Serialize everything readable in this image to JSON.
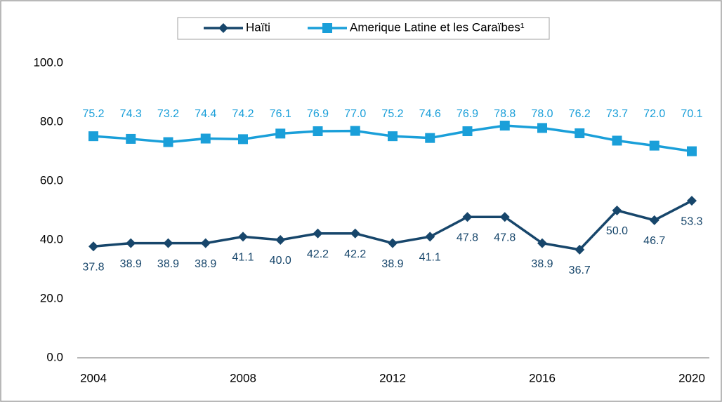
{
  "chart_data": {
    "type": "line",
    "x": [
      2004,
      2005,
      2006,
      2007,
      2008,
      2009,
      2010,
      2011,
      2012,
      2013,
      2014,
      2015,
      2016,
      2017,
      2018,
      2019,
      2020
    ],
    "series": [
      {
        "name": "Haïti",
        "color": "#17466b",
        "marker": "diamond",
        "values": [
          37.8,
          38.9,
          38.9,
          38.9,
          41.1,
          40.0,
          42.2,
          42.2,
          38.9,
          41.1,
          47.8,
          47.8,
          38.9,
          36.7,
          50.0,
          46.7,
          53.3
        ],
        "value_labels": [
          "37.8",
          "38.9",
          "38.9",
          "38.9",
          "41.1",
          "40.0",
          "42.2",
          "42.2",
          "38.9",
          "41.1",
          "47.8",
          "47.8",
          "38.9",
          "36.7",
          "50.0",
          "46.7",
          "53.3"
        ]
      },
      {
        "name": "Amerique Latine et les Caraïbes¹",
        "color": "#1a9fd9",
        "marker": "square",
        "values": [
          75.2,
          74.3,
          73.2,
          74.4,
          74.2,
          76.1,
          76.9,
          77.0,
          75.2,
          74.6,
          76.9,
          78.8,
          78.0,
          76.2,
          73.7,
          72.0,
          70.1
        ],
        "value_labels": [
          "75.2",
          "74.3",
          "73.2",
          "74.4",
          "74.2",
          "76.1",
          "76.9",
          "77.0",
          "75.2",
          "74.6",
          "76.9",
          "78.8",
          "78.0",
          "76.2",
          "73.7",
          "72.0",
          "70.1"
        ]
      }
    ],
    "xlim": [
      2004,
      2020
    ],
    "xticks": [
      2004,
      2008,
      2012,
      2016,
      2020
    ],
    "ylim": [
      0,
      100
    ],
    "yticks": [
      {
        "value": 0,
        "label": "0.0"
      },
      {
        "value": 20,
        "label": "20.0"
      },
      {
        "value": 40,
        "label": "40.0"
      },
      {
        "value": 60,
        "label": "60.0"
      },
      {
        "value": 80,
        "label": "80.0"
      },
      {
        "value": 100,
        "label": "100.0"
      }
    ],
    "grid": false
  }
}
